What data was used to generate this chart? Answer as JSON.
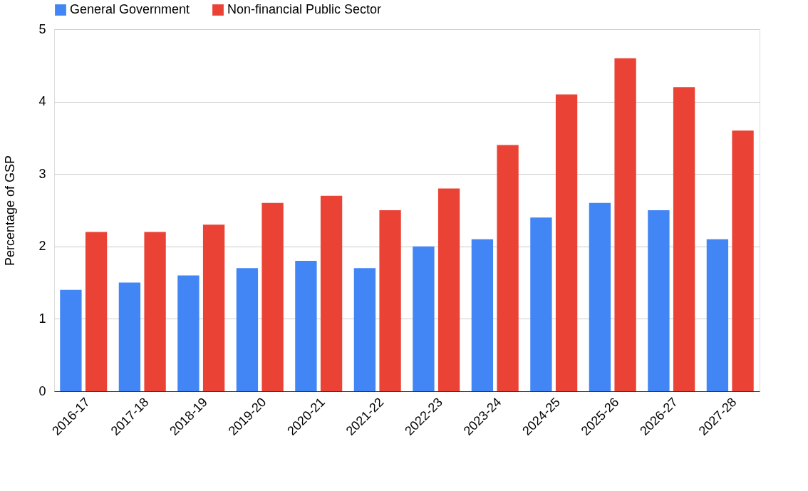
{
  "chart_data": {
    "type": "bar",
    "ylabel": "Percentage of GSP",
    "categories": [
      "2016-17",
      "2017-18",
      "2018-19",
      "2019-20",
      "2020-21",
      "2021-22",
      "2022-23",
      "2023-24",
      "2024-25",
      "2025-26",
      "2026-27",
      "2027-28"
    ],
    "series": [
      {
        "name": "General Government",
        "color": "#4285f4",
        "values": [
          1.4,
          1.5,
          1.6,
          1.7,
          1.8,
          1.7,
          2.0,
          2.1,
          2.4,
          2.6,
          2.5,
          2.1
        ]
      },
      {
        "name": "Non-financial Public Sector",
        "color": "#ea4335",
        "values": [
          2.2,
          2.2,
          2.3,
          2.6,
          2.7,
          2.5,
          2.8,
          3.4,
          4.1,
          4.6,
          4.2,
          3.6
        ]
      }
    ],
    "ylim": [
      0,
      5
    ],
    "yticks": [
      0,
      1,
      2,
      3,
      4,
      5
    ],
    "grid": "y",
    "legend": "top"
  }
}
